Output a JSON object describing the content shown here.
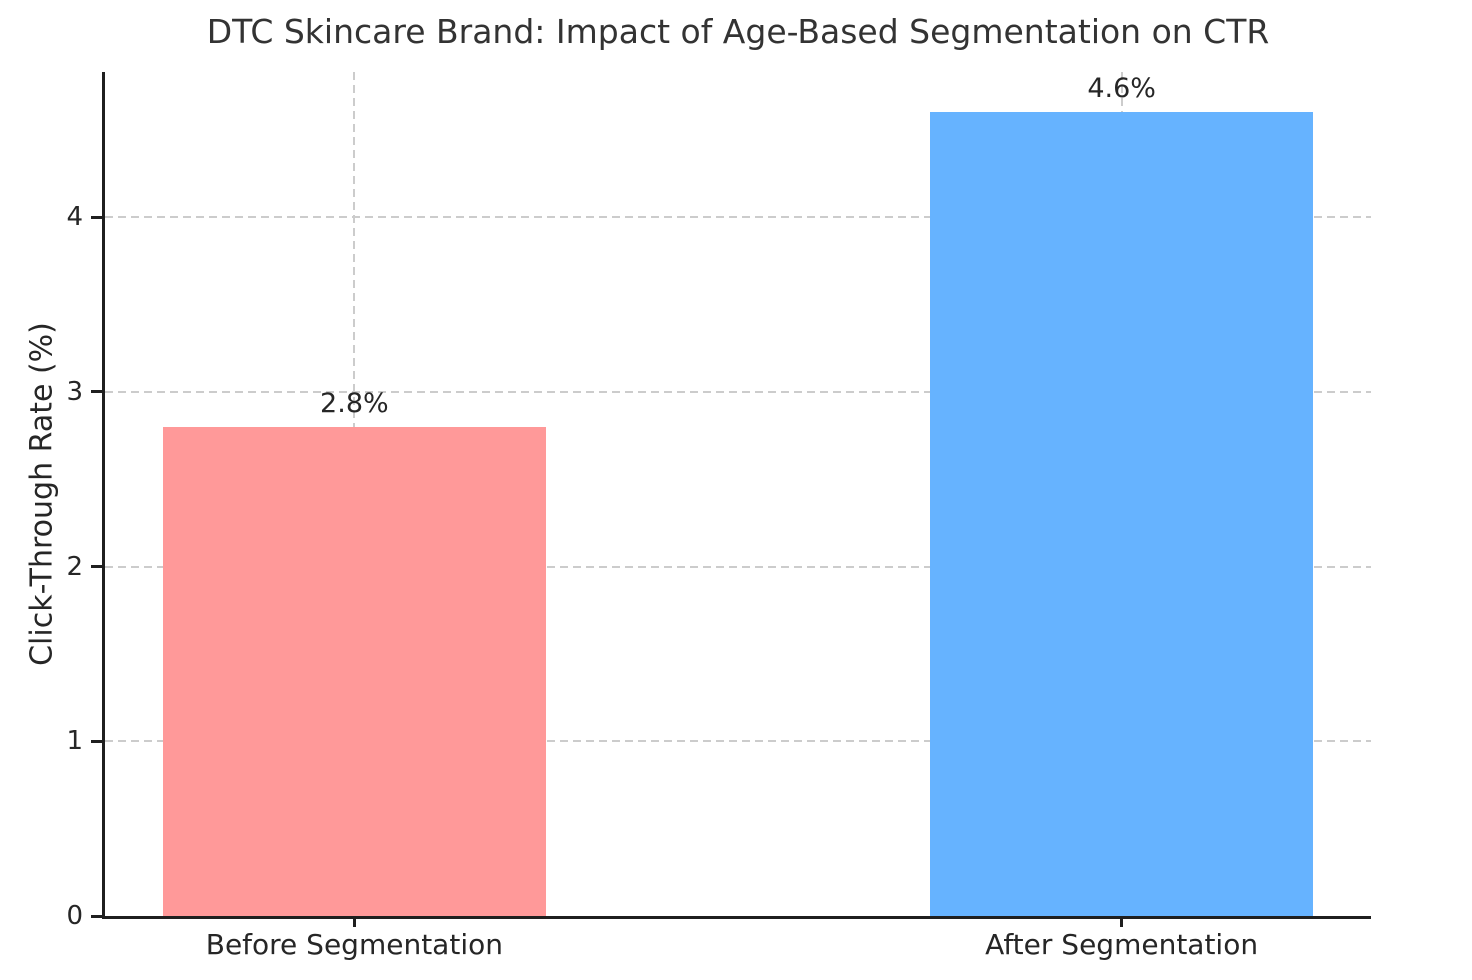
{
  "title": "DTC Skincare Brand: Impact of Age-Based Segmentation on CTR",
  "chart_data": {
    "type": "bar",
    "title": "DTC Skincare Brand: Impact of Age-Based Segmentation on CTR",
    "categories": [
      "Before Segmentation",
      "After Segmentation"
    ],
    "values": [
      2.8,
      4.6
    ],
    "bar_labels": [
      "2.8%",
      "4.6%"
    ],
    "bar_colors": [
      "#ff9999",
      "#66b3ff"
    ],
    "xlabel": "",
    "ylabel": "Click-Through Rate (%)",
    "ylim": [
      0,
      4.83
    ],
    "xlim": [
      -0.325,
      1.325
    ],
    "bar_width": 0.5,
    "yticks": [
      0,
      1,
      2,
      3,
      4
    ],
    "grid": "dashed",
    "grid_color": "#cccccc",
    "axis_color": "#1f1f1f",
    "text_color": "#262626",
    "legend": "none"
  }
}
